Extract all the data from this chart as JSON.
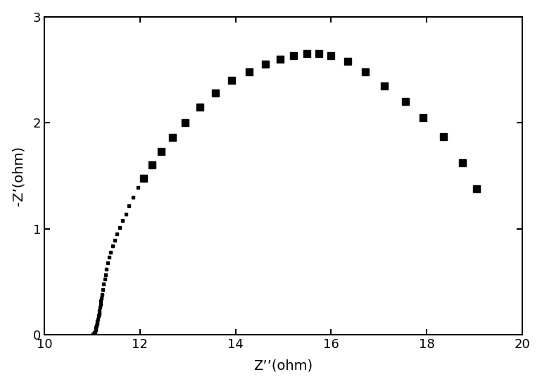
{
  "x_dense": [
    11.02,
    11.04,
    11.06,
    11.07,
    11.08,
    11.09,
    11.1,
    11.11,
    11.12,
    11.13,
    11.14,
    11.15,
    11.16,
    11.17,
    11.18,
    11.19,
    11.2,
    11.22,
    11.24,
    11.26,
    11.28,
    11.3,
    11.33,
    11.36,
    11.39,
    11.43,
    11.47,
    11.52,
    11.57,
    11.63,
    11.7,
    11.77,
    11.86,
    11.96
  ],
  "y_dense": [
    0.01,
    0.02,
    0.03,
    0.05,
    0.07,
    0.09,
    0.11,
    0.13,
    0.15,
    0.18,
    0.2,
    0.23,
    0.26,
    0.29,
    0.32,
    0.35,
    0.38,
    0.43,
    0.48,
    0.53,
    0.57,
    0.62,
    0.68,
    0.73,
    0.78,
    0.84,
    0.89,
    0.95,
    1.01,
    1.08,
    1.14,
    1.22,
    1.3,
    1.39
  ],
  "x_sparse": [
    12.08,
    12.25,
    12.45,
    12.68,
    12.95,
    13.25,
    13.58,
    13.92,
    14.28,
    14.62,
    14.93,
    15.22,
    15.5,
    15.75,
    16.0,
    16.35,
    16.72,
    17.12,
    17.55,
    17.93,
    18.35,
    18.75,
    19.05
  ],
  "y_sparse": [
    1.48,
    1.6,
    1.73,
    1.86,
    2.0,
    2.15,
    2.28,
    2.4,
    2.48,
    2.55,
    2.6,
    2.63,
    2.65,
    2.65,
    2.63,
    2.58,
    2.48,
    2.35,
    2.2,
    2.05,
    1.87,
    1.62,
    1.38
  ],
  "xlabel": "Z’’(ohm)",
  "ylabel": "-Z’(ohm)",
  "xlim": [
    10,
    20
  ],
  "ylim": [
    0,
    3
  ],
  "xticks": [
    10,
    12,
    14,
    16,
    18,
    20
  ],
  "yticks": [
    0,
    1,
    2,
    3
  ],
  "marker": "s",
  "marker_color": "#000000",
  "marker_size_dense": 3,
  "marker_size_sparse": 7,
  "background_color": "#ffffff"
}
